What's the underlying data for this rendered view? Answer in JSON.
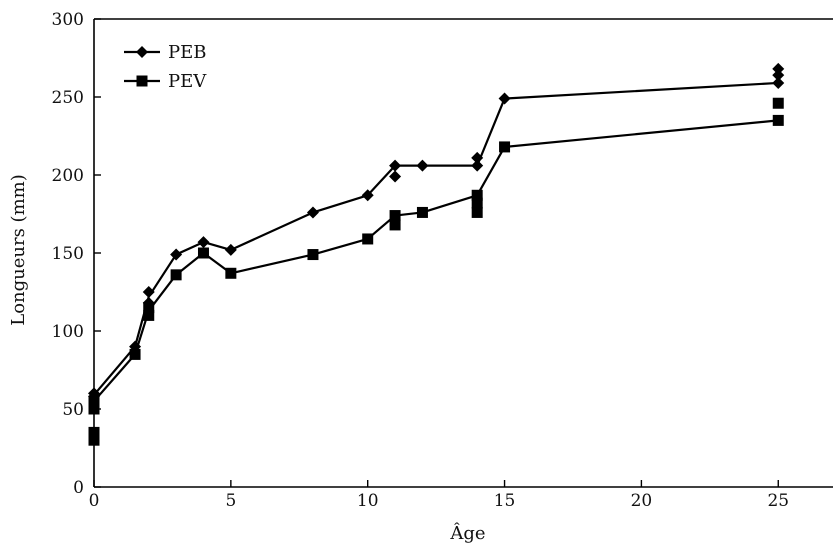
{
  "chart_data": {
    "type": "line",
    "title": "",
    "xlabel": "Âge",
    "ylabel": "Longueurs (mm)",
    "xlim": [
      0,
      27
    ],
    "ylim": [
      0,
      300
    ],
    "xticks": [
      0,
      5,
      10,
      15,
      20,
      25
    ],
    "yticks": [
      0,
      50,
      100,
      150,
      200,
      250,
      300
    ],
    "grid": false,
    "legend_position": "top-left",
    "series": [
      {
        "name": "PEB",
        "marker": "diamond",
        "color": "#000000",
        "points": [
          [
            0,
            58
          ],
          [
            0,
            60
          ],
          [
            1.5,
            90
          ],
          [
            2,
            118
          ],
          [
            2,
            125
          ],
          [
            3,
            149
          ],
          [
            4,
            157
          ],
          [
            5,
            152
          ],
          [
            8,
            176
          ],
          [
            10,
            187
          ],
          [
            11,
            199
          ],
          [
            11,
            206
          ],
          [
            12,
            206
          ],
          [
            14,
            206
          ],
          [
            14,
            211
          ],
          [
            15,
            249
          ],
          [
            25,
            259
          ],
          [
            25,
            264
          ],
          [
            25,
            268
          ]
        ],
        "line": [
          [
            0,
            59
          ],
          [
            1.5,
            90
          ],
          [
            2,
            122
          ],
          [
            3,
            149
          ],
          [
            4,
            157
          ],
          [
            5,
            152
          ],
          [
            8,
            176
          ],
          [
            10,
            187
          ],
          [
            11,
            206
          ],
          [
            12,
            206
          ],
          [
            14,
            206
          ],
          [
            15,
            249
          ],
          [
            25,
            259
          ]
        ]
      },
      {
        "name": "PEV",
        "marker": "square",
        "color": "#000000",
        "points": [
          [
            0,
            30
          ],
          [
            0,
            35
          ],
          [
            0,
            50
          ],
          [
            0,
            55
          ],
          [
            1.5,
            85
          ],
          [
            2,
            110
          ],
          [
            2,
            115
          ],
          [
            3,
            136
          ],
          [
            4,
            150
          ],
          [
            5,
            137
          ],
          [
            8,
            149
          ],
          [
            10,
            159
          ],
          [
            11,
            168
          ],
          [
            11,
            174
          ],
          [
            12,
            176
          ],
          [
            14,
            176
          ],
          [
            14,
            182
          ],
          [
            14,
            187
          ],
          [
            15,
            218
          ],
          [
            25,
            235
          ],
          [
            25,
            246
          ]
        ],
        "line": [
          [
            0,
            55
          ],
          [
            1.5,
            85
          ],
          [
            2,
            113
          ],
          [
            3,
            136
          ],
          [
            4,
            150
          ],
          [
            5,
            137
          ],
          [
            8,
            149
          ],
          [
            10,
            159
          ],
          [
            11,
            174
          ],
          [
            12,
            176
          ],
          [
            14,
            187
          ],
          [
            15,
            218
          ],
          [
            25,
            235
          ]
        ]
      }
    ]
  }
}
